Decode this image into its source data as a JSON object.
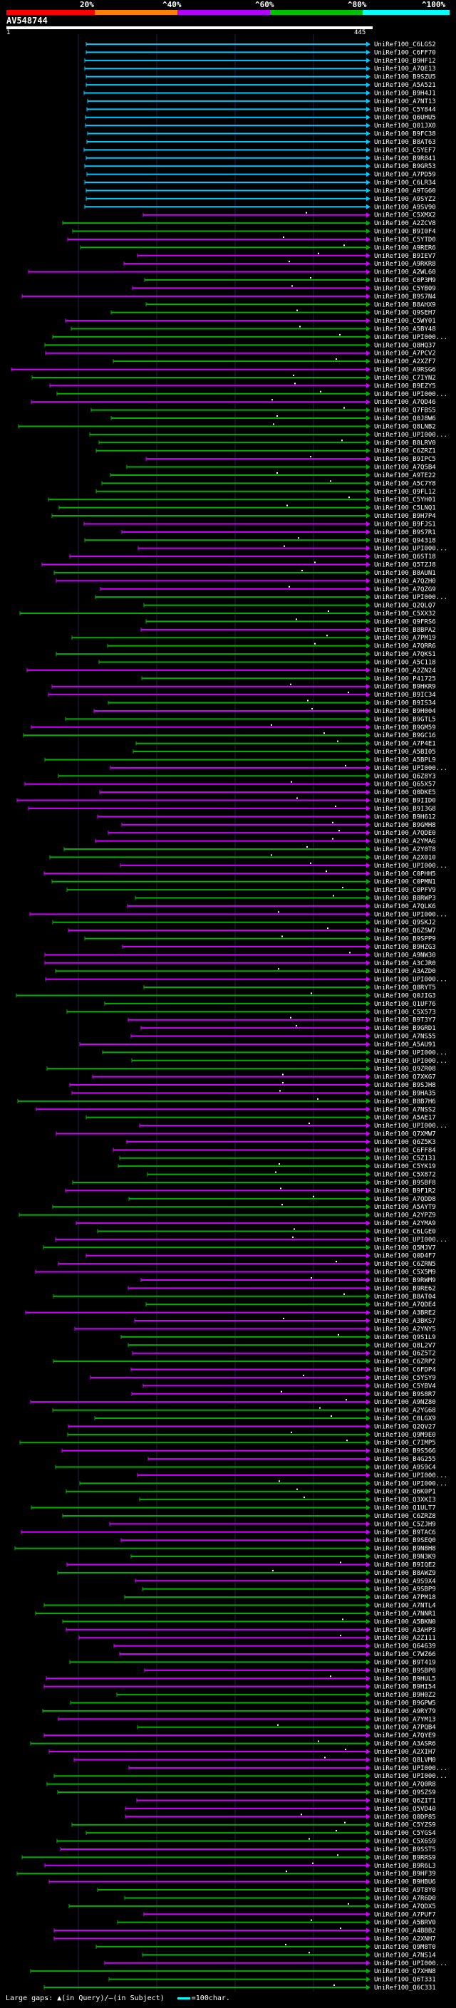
{
  "query": {
    "title": "AV548744",
    "start": "1",
    "end": "445"
  },
  "legend": [
    {
      "label": "20%",
      "color": "#ff0000"
    },
    {
      "label": "^40%",
      "color": "#ff8000"
    },
    {
      "label": "^60%",
      "color": "#b400ff"
    },
    {
      "label": "^80%",
      "color": "#00c000"
    },
    {
      "label": "^100%",
      "color": "#00ffff"
    }
  ],
  "colors": {
    "cyan": "#00c8ff",
    "magenta": "#d000ff",
    "green": "#00b000"
  },
  "footer": {
    "large_gaps": "Large gaps: ▲(in Query)/—(in Subject)",
    "scale": "=100char."
  },
  "hit_labels": [
    "UniRef100_C6LGS2",
    "UniRef100_C6FF70",
    "UniRef100_B9HF12",
    "UniRef100_A7QE13",
    "UniRef100_B9SZU5",
    "UniRef100_A5A521",
    "UniRef100_B9H4J1",
    "UniRef100_A7NT13",
    "UniRef100_C5Y844",
    "UniRef100_Q6UHU5",
    "UniRef100_Q01JX0",
    "UniRef100_B9FC38",
    "UniRef100_B8AT63",
    "UniRef100_C5YEF7",
    "UniRef100_B9R841",
    "UniRef100_B9GR53",
    "UniRef100_A7PD59",
    "UniRef100_C6LR34",
    "UniRef100_A9TG60",
    "UniRef100_A9SYZ2",
    "UniRef100_A9SV90",
    "UniRef100_C5XMX2",
    "UniRef100_A2ZCV8",
    "UniRef100_B9I0F4",
    "UniRef100_C5YTD0",
    "UniRef100_A9RER6",
    "UniRef100_B9IEV7",
    "UniRef100_A9RKR8",
    "UniRef100_A2WL60",
    "UniRef100_C0P3M9",
    "UniRef100_C5YB09",
    "UniRef100_B9S7N4",
    "UniRef100_B8AHX9",
    "UniRef100_Q9SEH7",
    "UniRef100_C5WY01",
    "UniRef100_A5BY48",
    "UniRef100_UPI000...",
    "UniRef100_Q8HQ37",
    "UniRef100_A7PCV2",
    "UniRef100_A2XZF7",
    "UniRef100_A9RSG6",
    "UniRef100_C7IYN2",
    "UniRef100_B9EZY5",
    "UniRef100_UPI000...",
    "UniRef100_A7QD46",
    "UniRef100_Q7FBS5",
    "UniRef100_Q0J8W6",
    "UniRef100_Q8LNB2",
    "UniRef100_UPI000...",
    "UniRef100_B8LRV0",
    "UniRef100_C6ZRZ1",
    "UniRef100_B9IPC5",
    "UniRef100_A7Q5B4",
    "UniRef100_A9TE22",
    "UniRef100_A5C7Y8",
    "UniRef100_Q9FL12",
    "UniRef100_C5YH01",
    "UniRef100_C5LNQ1",
    "UniRef100_B9H7P4",
    "UniRef100_B9FJS1",
    "UniRef100_B9S7R1",
    "UniRef100_Q94318",
    "UniRef100_UPI000...",
    "UniRef100_Q6ST18",
    "UniRef100_Q5TZJ8",
    "UniRef100_B8AUN1",
    "UniRef100_A7QZH0",
    "UniRef100_A7QZG9",
    "UniRef100_UPI000...",
    "UniRef100_Q2QLQ7",
    "UniRef100_C5XX32",
    "UniRef100_Q9FRS6",
    "UniRef100_B8BPA2",
    "UniRef100_A7PM19",
    "UniRef100_A7QRR6",
    "UniRef100_A7QKS1",
    "UniRef100_A5C118",
    "UniRef100_A2ZN24",
    "UniRef100_P41725",
    "UniRef100_B9HKR9",
    "UniRef100_B9IC34",
    "UniRef100_B9IS34",
    "UniRef100_B9H004",
    "UniRef100_B9GTL5",
    "UniRef100_B9GM59",
    "UniRef100_B9GC16",
    "UniRef100_A7P4E1",
    "UniRef100_A5BI05",
    "UniRef100_A5BPL9",
    "UniRef100_UPI000...",
    "UniRef100_Q6Z8Y3",
    "UniRef100_Q65X57",
    "UniRef100_Q0DKE5",
    "UniRef100_B9IID0",
    "UniRef100_B9I3G8",
    "UniRef100_B9H612",
    "UniRef100_B9GMH8",
    "UniRef100_A7QDE0",
    "UniRef100_A2YMA6",
    "UniRef100_A2Y0T8",
    "UniRef100_A2X010",
    "UniRef100_UPI000...",
    "UniRef100_C0PHH5",
    "UniRef100_C0PMN1",
    "UniRef100_C0PFV9",
    "UniRef100_B8RWP3",
    "UniRef100_A7QLK6",
    "UniRef100_UPI000...",
    "UniRef100_Q9SKJ2",
    "UniRef100_Q6ZSW7",
    "UniRef100_B9SPP9",
    "UniRef100_B9HZG3",
    "UniRef100_A9NW30",
    "UniRef100_A3CJR0",
    "UniRef100_A3AZD0",
    "UniRef100_UPI000...",
    "UniRef100_Q8RYT5",
    "UniRef100_Q0JIG3",
    "UniRef100_Q1UF76",
    "UniRef100_C5X573",
    "UniRef100_B9T3Y7",
    "UniRef100_B9GRD1",
    "UniRef100_A7NS55",
    "UniRef100_A5AU91",
    "UniRef100_UPI000...",
    "UniRef100_UPI000...",
    "UniRef100_Q9ZR08",
    "UniRef100_Q7XKG7",
    "UniRef100_B9SJH8",
    "UniRef100_B9HA35",
    "UniRef100_B8B7H6",
    "UniRef100_A7NSS2",
    "UniRef100_A5AE17",
    "UniRef100_UPI000...",
    "UniRef100_Q7XMW7",
    "UniRef100_Q6Z5K3",
    "UniRef100_C6FF84",
    "UniRef100_C5Z131",
    "UniRef100_C5YK19",
    "UniRef100_C5X872",
    "UniRef100_B9SBF8",
    "UniRef100_B9F1R2",
    "UniRef100_A7QDD8",
    "UniRef100_A5AYT9",
    "UniRef100_A2YPZ9",
    "UniRef100_A2YMA9",
    "UniRef100_C6LGE0",
    "UniRef100_UPI000...",
    "UniRef100_Q5MJV7",
    "UniRef100_Q0D4F7",
    "UniRef100_C6ZRN5",
    "UniRef100_C5X5M9",
    "UniRef100_B9RWM9",
    "UniRef100_B9RE62",
    "UniRef100_B8AT04",
    "UniRef100_A7QDE4",
    "UniRef100_A3BRE2",
    "UniRef100_A3BKS7",
    "UniRef100_A2YNY5",
    "UniRef100_Q9S1L9",
    "UniRef100_Q8L2V7",
    "UniRef100_Q6Z5T2",
    "UniRef100_C6ZRP2",
    "UniRef100_C6FDP4",
    "UniRef100_C5YSY9",
    "UniRef100_C5YBV4",
    "UniRef100_B9S8R7",
    "UniRef100_A9NZ80",
    "UniRef100_A2YG68",
    "UniRef100_C0LGX9",
    "UniRef100_Q2QV27",
    "UniRef100_Q9M9E0",
    "UniRef100_C7IMP5",
    "UniRef100_B9S566",
    "UniRef100_B4G255",
    "UniRef100_A9S9C4",
    "UniRef100_UPI000...",
    "UniRef100_UPI000...",
    "UniRef100_Q6K0P1",
    "UniRef100_Q3XKI3",
    "UniRef100_Q1ULT7",
    "UniRef100_C6ZRZ8",
    "UniRef100_C5ZJH9",
    "UniRef100_B9TAC6",
    "UniRef100_B9SEQ0",
    "UniRef100_B9N8H8",
    "UniRef100_B9N3K9",
    "UniRef100_B9IQE2",
    "UniRef100_B8AWZ9",
    "UniRef100_A9S9X4",
    "UniRef100_A9SBP9",
    "UniRef100_A7PM18",
    "UniRef100_A7NTL4",
    "UniRef100_A7NNR1",
    "UniRef100_A5BKN0",
    "UniRef100_A3AHP3",
    "UniRef100_A2Z111",
    "UniRef100_Q64639",
    "UniRef100_C7WZ66",
    "UniRef100_B9T419",
    "UniRef100_B9SBP8",
    "UniRef100_B9HUL5",
    "UniRef100_B9HI54",
    "UniRef100_B9H0Z2",
    "UniRef100_B9GPW5",
    "UniRef100_A9RY79",
    "UniRef100_A7YM13",
    "UniRef100_A7PQB4",
    "UniRef100_A7QYE9",
    "UniRef100_A3ASR6",
    "UniRef100_A2XIH7",
    "UniRef100_Q8LVM0",
    "UniRef100_UPI000...",
    "UniRef100_UPI000...",
    "UniRef100_A7Q0R8",
    "UniRef100_Q9SZS9",
    "UniRef100_Q6ZIT1",
    "UniRef100_Q5VD40",
    "UniRef100_Q0DP85",
    "UniRef100_C5YZS9",
    "UniRef100_C5YGS4",
    "UniRef100_C5X6S9",
    "UniRef100_B9SST5",
    "UniRef100_B9RRS9",
    "UniRef100_B9R6L3",
    "UniRef100_B9HF39",
    "UniRef100_B9HBU6",
    "UniRef100_A9T8Y0",
    "UniRef100_A7R6D0",
    "UniRef100_A7QDX5",
    "UniRef100_A7PUF7",
    "UniRef100_A5BRV0",
    "UniRef100_A4BBB2",
    "UniRef100_A2XNH7",
    "UniRef100_Q9M8T0",
    "UniRef100_A7NS14",
    "UniRef100_UPI000...",
    "UniRef100_Q7XHN8",
    "UniRef100_Q6T331",
    "UniRef100_Q6C331"
  ]
}
